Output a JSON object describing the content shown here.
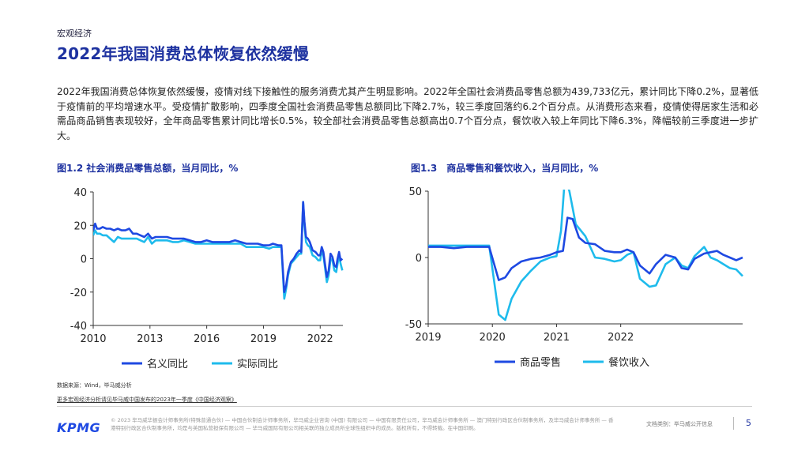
{
  "section_label": "宏观经济",
  "title": "2022年我国消费总体恢复依然缓慢",
  "body": "2022年我国消费总体恢复依然缓慢，疫情对线下接触性的服务消费尤其产生明显影响。2022年全国社会消费品零售总额为439,733亿元，累计同比下降0.2%，显著低于疫情前的平均增速水平。受疫情扩散影响，四季度全国社会消费品零售总额同比下降2.7%，较三季度回落约6.2个百分点。从消费形态来看，疫情使得居家生活和必需品商品销售表现较好，全年商品零售累计同比增长0.5%，较全部社会消费品零售总额高出0.7个百分点，餐饮收入较上年同比下降6.3%，降幅较前三季度进一步扩大。",
  "colors": {
    "dark_blue": "#1e49e2",
    "light_blue": "#1ebbec",
    "title_blue": "#1e32a0"
  },
  "chart_data": [
    {
      "type": "line",
      "title": "图1.2 社会消费品零售总额，当月同比，%",
      "ylim": [
        -40,
        40
      ],
      "yticks": [
        40,
        20,
        0,
        -20,
        -40
      ],
      "xlim": [
        2010,
        2023.2
      ],
      "xticks": [
        2010,
        2013,
        2016,
        2019,
        2022
      ],
      "series": [
        {
          "name": "名义同比",
          "color": "#1e49e2",
          "x": [
            2010.0,
            2010.1,
            2010.2,
            2010.35,
            2010.5,
            2010.7,
            2010.9,
            2011.1,
            2011.3,
            2011.5,
            2011.7,
            2011.9,
            2012.1,
            2012.3,
            2012.5,
            2012.7,
            2012.9,
            2013.1,
            2013.3,
            2013.5,
            2013.7,
            2013.9,
            2014.2,
            2014.5,
            2014.8,
            2015.1,
            2015.4,
            2015.7,
            2016.0,
            2016.3,
            2016.6,
            2016.9,
            2017.2,
            2017.5,
            2017.8,
            2018.1,
            2018.4,
            2018.7,
            2019.0,
            2019.3,
            2019.5,
            2019.8,
            2019.95,
            2020.1,
            2020.2,
            2020.3,
            2020.45,
            2020.6,
            2020.75,
            2020.9,
            2021.0,
            2021.1,
            2021.17,
            2021.25,
            2021.35,
            2021.45,
            2021.6,
            2021.75,
            2021.9,
            2022.0,
            2022.08,
            2022.17,
            2022.25,
            2022.35,
            2022.45,
            2022.55,
            2022.65,
            2022.75,
            2022.85,
            2022.92,
            2023.0,
            2023.08,
            2023.17
          ],
          "values": [
            17,
            21,
            18,
            18,
            19,
            18,
            18,
            17,
            18,
            17,
            17,
            18,
            15,
            15,
            14,
            13,
            15,
            12,
            13,
            13,
            13,
            13,
            12,
            12,
            12,
            11,
            10,
            10,
            11,
            10,
            10,
            10,
            10,
            11,
            10,
            9,
            9,
            9,
            8,
            8,
            9,
            8,
            8,
            -20,
            -16,
            -8,
            -2,
            0,
            3,
            5,
            4,
            34,
            22,
            13,
            12,
            10,
            5,
            4,
            2,
            2,
            7,
            4,
            -3,
            -11,
            -7,
            3,
            1,
            -4,
            -5,
            0,
            4,
            -1,
            0
          ]
        },
        {
          "name": "实际同比",
          "color": "#1ebbec",
          "x": [
            2010.0,
            2010.1,
            2010.2,
            2010.35,
            2010.5,
            2010.7,
            2010.9,
            2011.1,
            2011.3,
            2011.5,
            2011.7,
            2011.9,
            2012.1,
            2012.3,
            2012.5,
            2012.7,
            2012.9,
            2013.1,
            2013.3,
            2013.5,
            2013.7,
            2013.9,
            2014.2,
            2014.5,
            2014.8,
            2015.1,
            2015.4,
            2015.7,
            2016.0,
            2016.3,
            2016.6,
            2016.9,
            2017.2,
            2017.5,
            2017.8,
            2018.1,
            2018.4,
            2018.7,
            2019.0,
            2019.3,
            2019.5,
            2019.8,
            2019.95,
            2020.1,
            2020.2,
            2020.3,
            2020.45,
            2020.6,
            2020.75,
            2020.9,
            2021.0,
            2021.1,
            2021.17,
            2021.25,
            2021.35,
            2021.45,
            2021.6,
            2021.75,
            2021.9,
            2022.0,
            2022.08,
            2022.17,
            2022.25,
            2022.35,
            2022.45,
            2022.55,
            2022.65,
            2022.75,
            2022.85,
            2022.92,
            2023.0,
            2023.08,
            2023.17
          ],
          "values": [
            14,
            17,
            15,
            15,
            14,
            14,
            12,
            10,
            13,
            12,
            12,
            12,
            12,
            12,
            11,
            10,
            13,
            9,
            11,
            11,
            11,
            11,
            10,
            10,
            11,
            10,
            9,
            9,
            9,
            9,
            9,
            9,
            9,
            9,
            9,
            7,
            7,
            7,
            7,
            6,
            7,
            7,
            7,
            -24,
            -18,
            -10,
            -3,
            -1,
            1,
            3,
            3,
            34,
            20,
            10,
            8,
            7,
            2,
            1,
            -1,
            -1,
            5,
            2,
            -5,
            -14,
            -10,
            0,
            -1,
            -7,
            -8,
            -3,
            2,
            -3,
            -7
          ]
        }
      ],
      "legend": [
        "名义同比",
        "实际同比"
      ]
    },
    {
      "type": "line",
      "title": "图1.3　商品零售和餐饮收入，当月同比，%",
      "ylim": [
        -50,
        50
      ],
      "yticks": [
        50,
        0,
        -50
      ],
      "xlim": [
        2019,
        2023.9
      ],
      "xticks": [
        2019,
        2020,
        2021,
        2022
      ],
      "series": [
        {
          "name": "商品零售",
          "color": "#1e49e2",
          "x": [
            2019.0,
            2019.2,
            2019.4,
            2019.6,
            2019.8,
            2019.95,
            2020.1,
            2020.2,
            2020.3,
            2020.45,
            2020.6,
            2020.75,
            2020.9,
            2021.0,
            2021.1,
            2021.17,
            2021.25,
            2021.35,
            2021.45,
            2021.6,
            2021.75,
            2021.9,
            2022.0,
            2022.1,
            2022.2,
            2022.3,
            2022.45,
            2022.55,
            2022.7,
            2022.85,
            2022.95,
            2023.05,
            2023.15,
            2023.3,
            2023.4,
            2023.5,
            2023.6,
            2023.7,
            2023.8,
            2023.9
          ],
          "values": [
            8,
            8,
            7,
            8,
            8,
            8,
            -17,
            -15,
            -8,
            -3,
            -1,
            0,
            2,
            4,
            5,
            30,
            29,
            15,
            11,
            10,
            5,
            4,
            4,
            6,
            4,
            -6,
            -12,
            -5,
            2,
            0,
            -8,
            -9,
            -1,
            3,
            4,
            5,
            2,
            0,
            -2,
            0
          ]
        },
        {
          "name": "餐饮收入",
          "color": "#1ebbec",
          "x": [
            2019.0,
            2019.2,
            2019.4,
            2019.6,
            2019.8,
            2019.95,
            2020.1,
            2020.2,
            2020.3,
            2020.45,
            2020.6,
            2020.75,
            2020.9,
            2021.0,
            2021.07,
            2021.13,
            2021.2,
            2021.3,
            2021.45,
            2021.6,
            2021.75,
            2021.9,
            2022.0,
            2022.1,
            2022.2,
            2022.3,
            2022.45,
            2022.55,
            2022.7,
            2022.85,
            2022.95,
            2023.05,
            2023.15,
            2023.3,
            2023.4,
            2023.5,
            2023.6,
            2023.7,
            2023.8,
            2023.9
          ],
          "values": [
            9,
            9,
            9,
            9,
            9,
            9,
            -43,
            -47,
            -31,
            -18,
            -10,
            -3,
            0,
            1,
            20,
            60,
            50,
            25,
            16,
            0,
            -1,
            -3,
            -2,
            2,
            4,
            -16,
            -22,
            -21,
            -5,
            0,
            -6,
            -8,
            1,
            8,
            0,
            -2,
            -5,
            -8,
            -9,
            -14
          ]
        }
      ],
      "legend": [
        "商品零售",
        "餐饮收入"
      ]
    }
  ],
  "source": "数据来源：Wind，毕马威分析",
  "more_link": "更多宏观经济分析请见毕马威中国发布的2023年一季度《中国经济观察》",
  "footer": {
    "logo": "KPMG",
    "legal": "© 2023 毕马威华振会计师事务所(特殊普通合伙) — 中国合伙制会计师事务所，毕马威企业咨询 (中国) 有限公司 — 中国有限责任公司，毕马威会计师事务所 — 澳门特别行政区合伙制事务所，及毕马威会计师事务所 — 香港特别行政区合伙制事务所，均是与英国私营担保有限公司 — 毕马威国际有限公司相关联的独立成员所全球性组织中的成员。版权所有，不得转载。在中国印刷。",
    "doc_class": "文档类别：毕马威公开信息",
    "page": "5"
  }
}
